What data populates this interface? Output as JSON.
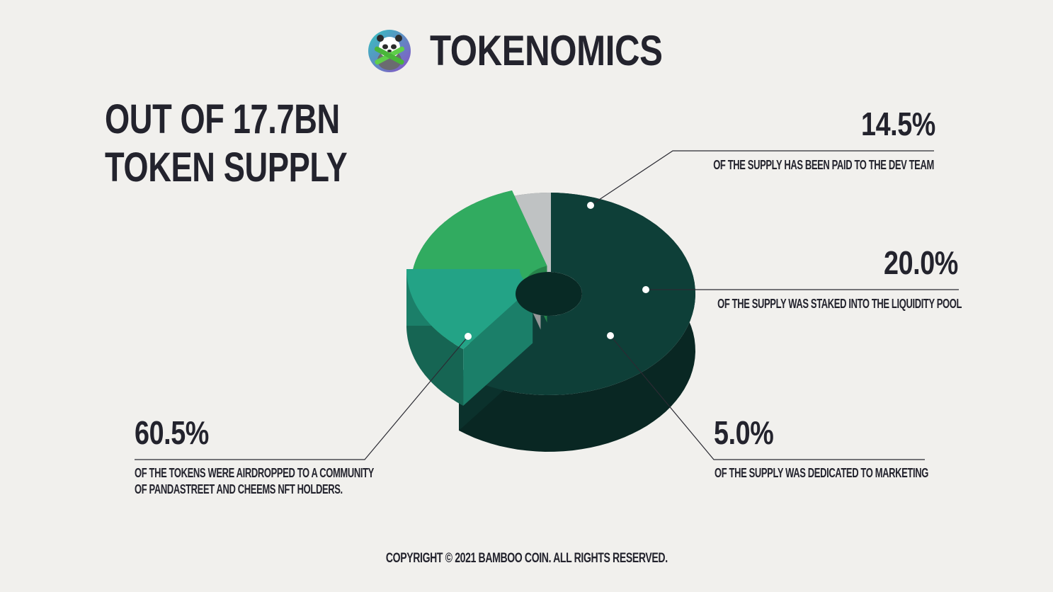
{
  "header": {
    "title": "TOKENOMICS",
    "logo_icon": "panda-bamboo-logo-icon"
  },
  "supply": {
    "line1": "OUT OF 17.7BN",
    "line2": "TOKEN SUPPLY"
  },
  "chart_data": {
    "type": "pie",
    "style": "3d-donut-exploded",
    "categories": [
      "OF THE TOKENS WERE AIRDROPPED TO A COMMUNITY OF PANDASTREET AND CHEEMS NFT HOLDERS.",
      "OF THE SUPPLY HAS BEEN PAID TO THE DEV TEAM",
      "OF THE SUPPLY WAS STAKED INTO THE LIQUIDITY POOL",
      "OF THE SUPPLY WAS DEDICATED TO MARKETING"
    ],
    "values": [
      60.5,
      14.5,
      20.0,
      5.0
    ],
    "labels": [
      "60.5%",
      "14.5%",
      "20.0%",
      "5.0%"
    ],
    "colors": [
      "#0e3f38",
      "#23a386",
      "#31ab60",
      "#bfc2c3"
    ]
  },
  "annotations": {
    "airdrop": {
      "pct": "60.5%",
      "line1": "OF THE TOKENS WERE AIRDROPPED TO A COMMUNITY",
      "line2": "OF PANDASTREET AND CHEEMS NFT HOLDERS."
    },
    "dev": {
      "pct": "14.5%",
      "text": "OF THE SUPPLY HAS BEEN PAID TO THE DEV TEAM"
    },
    "liquidity": {
      "pct": "20.0%",
      "text": "OF THE SUPPLY WAS STAKED INTO THE LIQUIDITY POOL"
    },
    "marketing": {
      "pct": "5.0%",
      "text": "OF THE SUPPLY WAS DEDICATED TO MARKETING"
    }
  },
  "footer": {
    "copyright": "COPYRIGHT © 2021 BAMBOO COIN. ALL RIGHTS RESERVED."
  }
}
